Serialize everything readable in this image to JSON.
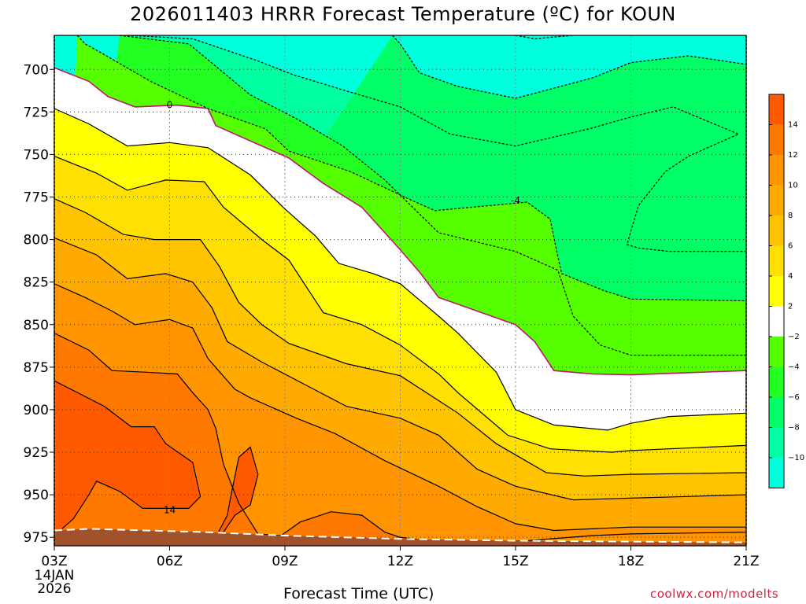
{
  "chart_data": {
    "type": "contour",
    "title": "2026011403 HRRR Forecast Temperature (ºC) for KOUN",
    "xlabel": "Forecast Time (UTC)",
    "ylabel": "",
    "x_ticks": [
      "03Z",
      "06Z",
      "09Z",
      "12Z",
      "15Z",
      "18Z",
      "21Z"
    ],
    "x_hours": [
      3,
      6,
      9,
      12,
      15,
      18,
      21
    ],
    "x_start_date": [
      "14JAN",
      "2026"
    ],
    "xlim": [
      3,
      21
    ],
    "y_ticks": [
      700,
      725,
      750,
      775,
      800,
      825,
      850,
      875,
      900,
      925,
      950,
      975
    ],
    "ylim": [
      980,
      680
    ],
    "grid": true,
    "contour_labels": [
      {
        "text": "0",
        "hour": 6.0,
        "pressure": 721
      },
      {
        "text": "-4",
        "hour": 15.0,
        "pressure": 777
      },
      {
        "text": "14",
        "hour": 6.0,
        "pressure": 959
      }
    ],
    "contours": [
      {
        "level": -8,
        "dashed": true,
        "points": [
          [
            4.9,
            680
          ],
          [
            6.6,
            682
          ],
          [
            8.3,
            695
          ],
          [
            9.2,
            703
          ],
          [
            10.5,
            712
          ],
          [
            12,
            722
          ],
          [
            13.3,
            738
          ],
          [
            15,
            745
          ],
          [
            16.9,
            735
          ],
          [
            18,
            728
          ],
          [
            19.1,
            722
          ],
          [
            20.8,
            738
          ],
          [
            19.5,
            751
          ],
          [
            18.9,
            760
          ],
          [
            18.2,
            780
          ],
          [
            18.0,
            795
          ],
          [
            17.9,
            803
          ],
          [
            18.2,
            805
          ],
          [
            19,
            807
          ],
          [
            20.5,
            807
          ],
          [
            21,
            807
          ]
        ]
      },
      {
        "level": -6,
        "dashed": true,
        "points": [
          [
            11.8,
            680
          ],
          [
            12,
            685
          ],
          [
            12.5,
            702
          ],
          [
            13.5,
            710
          ],
          [
            15,
            717
          ],
          [
            16,
            711
          ],
          [
            17,
            705
          ],
          [
            18,
            696
          ],
          [
            19.5,
            692
          ],
          [
            21,
            697
          ]
        ]
      },
      {
        "level": -10,
        "dashed": true,
        "points": [
          [
            15,
            680
          ],
          [
            15.5,
            682
          ],
          [
            16.5,
            680
          ]
        ]
      },
      {
        "level": -4,
        "dashed": true,
        "points": [
          [
            4.7,
            680
          ],
          [
            6.5,
            685
          ],
          [
            7.3,
            700
          ],
          [
            8.1,
            715
          ],
          [
            9.3,
            729
          ],
          [
            10.5,
            745
          ],
          [
            11.6,
            765
          ],
          [
            13.0,
            796
          ],
          [
            15.0,
            807
          ],
          [
            16.1,
            818
          ],
          [
            16.5,
            845
          ],
          [
            17.2,
            862
          ],
          [
            18,
            868
          ],
          [
            21,
            868
          ]
        ]
      },
      {
        "level": -2,
        "dashed": true,
        "points": [
          [
            3.6,
            680
          ],
          [
            3.8,
            685
          ],
          [
            4.2,
            690
          ],
          [
            5.5,
            707
          ],
          [
            7,
            723
          ],
          [
            8.5,
            735
          ],
          [
            9.1,
            748
          ],
          [
            10.7,
            760
          ],
          [
            12.3,
            777
          ],
          [
            12.9,
            783
          ],
          [
            15.3,
            778
          ],
          [
            15.9,
            788
          ],
          [
            16.1,
            810
          ],
          [
            16.2,
            820
          ],
          [
            17.3,
            830
          ],
          [
            18,
            835
          ],
          [
            21,
            836
          ]
        ]
      },
      {
        "level": 0,
        "color": "#c0146e",
        "points": [
          [
            3,
            699
          ],
          [
            3.9,
            707
          ],
          [
            4.4,
            716
          ],
          [
            5.1,
            722
          ],
          [
            6.2,
            721
          ],
          [
            7.0,
            723
          ],
          [
            7.2,
            733
          ],
          [
            8.3,
            744
          ],
          [
            9.1,
            752
          ],
          [
            10.0,
            767
          ],
          [
            11.0,
            781
          ],
          [
            12.0,
            806
          ],
          [
            12.5,
            819
          ],
          [
            13.0,
            834
          ],
          [
            15.0,
            850
          ],
          [
            15.5,
            860
          ],
          [
            16.0,
            877
          ],
          [
            17,
            879
          ],
          [
            18,
            879.5
          ],
          [
            21,
            877
          ]
        ]
      },
      {
        "level": 2,
        "points": [
          [
            3,
            723
          ],
          [
            3.9,
            732
          ],
          [
            4.9,
            745
          ],
          [
            6,
            743
          ],
          [
            7,
            746
          ],
          [
            8.1,
            762
          ],
          [
            9.0,
            782
          ],
          [
            9.8,
            798
          ],
          [
            10.4,
            814
          ],
          [
            11.3,
            820
          ],
          [
            12.0,
            826
          ],
          [
            13.0,
            845
          ],
          [
            13.5,
            855
          ],
          [
            14.5,
            878
          ],
          [
            15.0,
            900
          ],
          [
            16.0,
            909
          ],
          [
            17.4,
            912
          ],
          [
            18,
            908
          ],
          [
            19,
            904
          ],
          [
            21,
            902
          ]
        ]
      },
      {
        "level": 4,
        "points": [
          [
            3,
            751
          ],
          [
            4.1,
            761
          ],
          [
            4.9,
            771
          ],
          [
            5.9,
            765
          ],
          [
            6.9,
            766
          ],
          [
            7.4,
            781
          ],
          [
            8.4,
            800
          ],
          [
            9.1,
            812
          ],
          [
            10.0,
            843
          ],
          [
            11.0,
            850
          ],
          [
            12.0,
            862
          ],
          [
            13.0,
            879
          ],
          [
            13.5,
            890
          ],
          [
            14.8,
            915
          ],
          [
            15.9,
            923
          ],
          [
            17.5,
            925
          ],
          [
            18,
            924
          ],
          [
            19,
            923
          ],
          [
            21,
            921
          ]
        ]
      },
      {
        "level": 6,
        "points": [
          [
            3,
            776
          ],
          [
            3.8,
            784
          ],
          [
            4.8,
            797
          ],
          [
            5.6,
            800
          ],
          [
            6.8,
            800
          ],
          [
            7.3,
            816
          ],
          [
            7.8,
            837
          ],
          [
            8.4,
            850
          ],
          [
            9.1,
            861
          ],
          [
            10.6,
            873
          ],
          [
            12.0,
            880
          ],
          [
            13.5,
            902
          ],
          [
            14.5,
            920
          ],
          [
            15.8,
            937
          ],
          [
            16.8,
            939
          ],
          [
            18,
            938
          ],
          [
            21,
            937
          ]
        ]
      },
      {
        "level": 8,
        "points": [
          [
            3,
            799
          ],
          [
            4.1,
            809
          ],
          [
            4.9,
            823
          ],
          [
            5.9,
            820
          ],
          [
            6.6,
            825
          ],
          [
            7.1,
            840
          ],
          [
            7.5,
            860
          ],
          [
            8.4,
            872
          ],
          [
            9.5,
            885
          ],
          [
            10.6,
            898
          ],
          [
            12.0,
            905
          ],
          [
            13,
            915
          ],
          [
            14,
            935
          ],
          [
            15,
            945
          ],
          [
            16.5,
            953
          ],
          [
            18,
            952
          ],
          [
            21,
            950
          ]
        ]
      },
      {
        "level": 10,
        "points": [
          [
            3,
            826
          ],
          [
            3.8,
            834
          ],
          [
            4.5,
            842
          ],
          [
            5.1,
            850
          ],
          [
            6,
            847
          ],
          [
            6.6,
            852
          ],
          [
            7.0,
            870
          ],
          [
            7.7,
            888
          ],
          [
            8.1,
            893
          ],
          [
            9.3,
            905
          ],
          [
            10.3,
            914
          ],
          [
            11.6,
            930
          ],
          [
            13,
            945
          ],
          [
            14,
            957
          ],
          [
            15,
            967
          ],
          [
            16,
            971
          ],
          [
            18,
            969
          ],
          [
            21,
            969
          ]
        ]
      },
      {
        "level": 12,
        "points": [
          [
            3,
            855
          ],
          [
            3.9,
            865
          ],
          [
            4.5,
            877
          ],
          [
            5.4,
            878
          ],
          [
            6.2,
            879
          ],
          [
            6.6,
            890
          ],
          [
            7,
            900
          ],
          [
            7.2,
            911
          ],
          [
            7.4,
            932
          ],
          [
            7.8,
            955
          ],
          [
            8.3,
            973
          ],
          [
            8.9,
            974
          ],
          [
            9.4,
            966
          ],
          [
            10.2,
            960
          ],
          [
            11,
            962
          ],
          [
            11.6,
            972
          ],
          [
            12,
            975
          ],
          [
            13.8,
            980
          ]
        ]
      },
      {
        "level": 14,
        "points": [
          [
            3,
            883
          ],
          [
            4.3,
            898
          ],
          [
            5.0,
            910
          ],
          [
            5.6,
            910
          ],
          [
            5.9,
            920
          ],
          [
            6.6,
            931
          ],
          [
            6.8,
            951
          ],
          [
            6.5,
            958
          ],
          [
            5.3,
            958
          ],
          [
            4.7,
            948
          ],
          [
            4.1,
            942
          ],
          [
            3.9,
            950
          ],
          [
            3.5,
            964
          ],
          [
            3.2,
            970
          ]
        ]
      },
      {
        "level": 14,
        "points": [
          [
            7.2,
            975
          ],
          [
            7.5,
            962
          ],
          [
            7.6,
            950
          ],
          [
            7.8,
            928
          ],
          [
            8.1,
            922
          ],
          [
            8.3,
            938
          ],
          [
            8.1,
            956
          ],
          [
            7.7,
            962
          ],
          [
            7.4,
            972
          ]
        ]
      },
      {
        "level": 14,
        "points": [
          [
            3.2,
            974
          ],
          [
            4.5,
            971
          ],
          [
            6.1,
            972
          ],
          [
            7.0,
            974
          ]
        ]
      },
      {
        "level": 14,
        "points": [
          [
            13.5,
            978
          ],
          [
            15.3,
            977
          ],
          [
            17,
            974
          ],
          [
            18,
            973
          ],
          [
            21,
            972
          ]
        ]
      }
    ],
    "surface": {
      "fill": "#a0522d",
      "points": [
        [
          3,
          971
        ],
        [
          3.9,
          970
        ],
        [
          7,
          972
        ],
        [
          9,
          974
        ],
        [
          12,
          976
        ],
        [
          15,
          977
        ],
        [
          18,
          977.5
        ],
        [
          21,
          978
        ]
      ]
    },
    "colorbar": {
      "tick_labels": [
        "14",
        "12",
        "10",
        "8",
        "6",
        "4",
        "2",
        "−2",
        "−4",
        "−6",
        "−8",
        "−10"
      ],
      "colors": [
        "#ff5a00",
        "#ff7800",
        "#ff9400",
        "#ffaa00",
        "#ffc300",
        "#ffe000",
        "#ffff00",
        "#ffffff",
        "#55ff00",
        "#22ff22",
        "#00ff66",
        "#00ffa0",
        "#00ffdd"
      ]
    },
    "credit": "coolwx.com/modelts"
  }
}
